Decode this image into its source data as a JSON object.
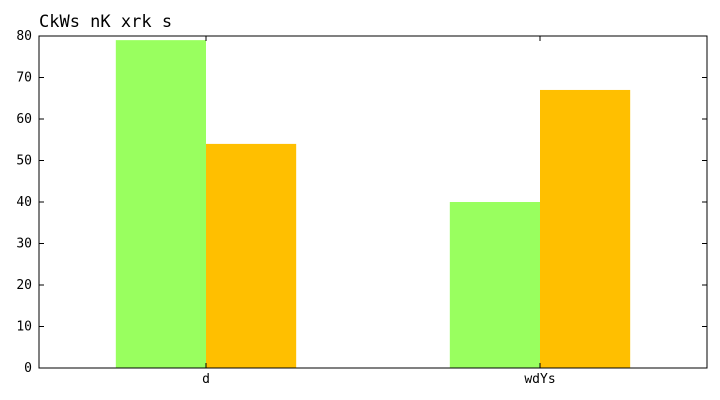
{
  "chart_data": {
    "type": "bar",
    "title": "CkWs  nK xrk s",
    "xlabel": "",
    "ylabel": "",
    "categories": [
      "d",
      "wdYs"
    ],
    "series": [
      {
        "values": [
          79,
          40
        ],
        "color": "#99ff5f"
      },
      {
        "values": [
          54,
          67
        ],
        "color": "#ffbf00"
      }
    ],
    "ylim": [
      0,
      80
    ],
    "yticks": [
      0,
      10,
      20,
      30,
      40,
      50,
      60,
      70,
      80
    ],
    "grid": false,
    "legend": "none"
  }
}
